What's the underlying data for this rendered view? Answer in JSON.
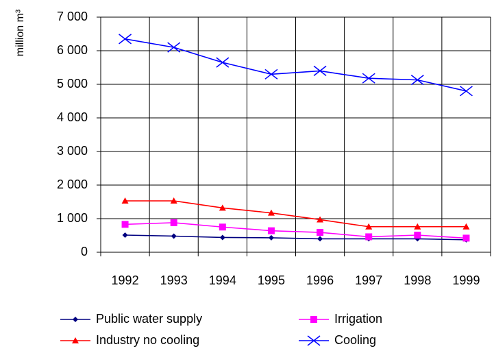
{
  "chart_data": {
    "type": "line",
    "y_label": "million m³",
    "categories": [
      "1992",
      "1993",
      "1994",
      "1995",
      "1996",
      "1997",
      "1998",
      "1999"
    ],
    "series": [
      {
        "name": "Public water supply",
        "color": "#000080",
        "marker": "diamond",
        "values": [
          510,
          480,
          440,
          430,
          400,
          400,
          400,
          370
        ]
      },
      {
        "name": "Irrigation",
        "color": "#ff00ff",
        "marker": "square",
        "values": [
          830,
          880,
          750,
          640,
          590,
          460,
          510,
          420
        ]
      },
      {
        "name": "Industry no cooling",
        "color": "#ff0000",
        "marker": "triangle",
        "values": [
          1530,
          1530,
          1320,
          1170,
          970,
          760,
          760,
          760
        ]
      },
      {
        "name": "Cooling",
        "color": "#0000ff",
        "marker": "x",
        "values": [
          6350,
          6100,
          5650,
          5300,
          5400,
          5180,
          5130,
          4800
        ]
      }
    ],
    "ylim": [
      0,
      7000
    ],
    "yticks": [
      0,
      {
        "value": 1000,
        "label": "1 000"
      },
      {
        "value": 2000,
        "label": "2 000"
      },
      {
        "value": 3000,
        "label": "3 000"
      },
      {
        "value": 4000,
        "label": "4 000"
      },
      {
        "value": 5000,
        "label": "5 000"
      },
      {
        "value": 6000,
        "label": "6 000"
      },
      {
        "value": 7000,
        "label": "7 000"
      }
    ],
    "grid": true,
    "legend": "bottom"
  }
}
